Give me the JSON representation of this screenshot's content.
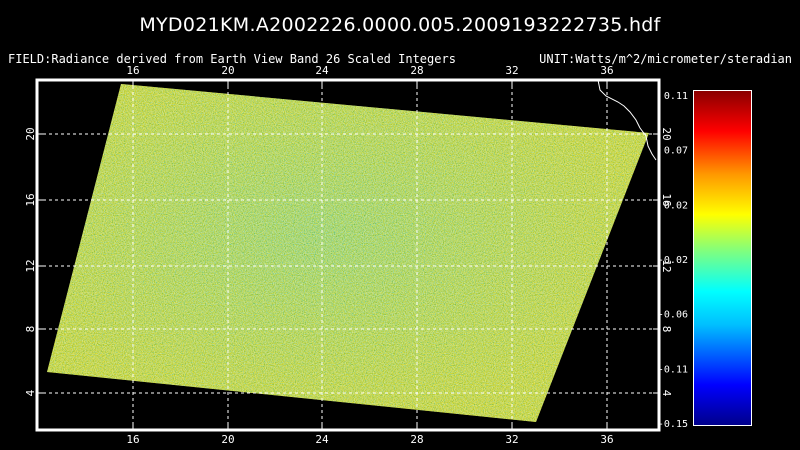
{
  "title": "MYD021KM.A2002226.0000.005.2009193222735.hdf",
  "field_label": "FIELD:Radiance derived from Earth View Band 26 Scaled Integers",
  "unit_label": "UNIT:Watts/m^2/micrometer/steradian",
  "map": {
    "lon_ticks": [
      "16",
      "20",
      "24",
      "28",
      "32",
      "36"
    ],
    "lat_ticks": [
      "20",
      "16",
      "12",
      "8",
      "4"
    ],
    "grid": true
  },
  "colorbar": {
    "ticks": [
      "0.11",
      "0.07",
      "0.02",
      "-0.02",
      "-0.06",
      "-0.11",
      "-0.15"
    ],
    "range": [
      -0.15,
      0.11
    ],
    "colors": [
      "#00008b",
      "#0000ff",
      "#00bfff",
      "#00ffff",
      "#7fff7f",
      "#ffff00",
      "#ff9900",
      "#ff0000",
      "#8b0000"
    ]
  },
  "swath_color": "#d8e860"
}
